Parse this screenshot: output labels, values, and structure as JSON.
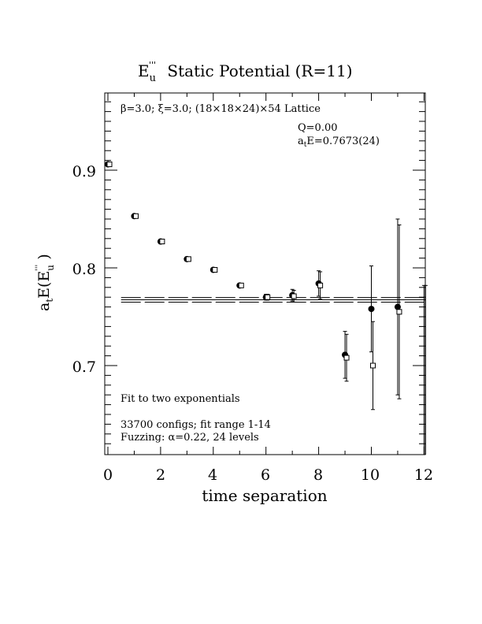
{
  "chart_data": {
    "type": "scatter",
    "title_main": "E",
    "title_sub": "u",
    "title_sup": "'''",
    "title_rest": "  Static Potential (R=11)",
    "xlabel": "time separation",
    "ylabel_a": "a",
    "ylabel_t": "t",
    "ylabel_rest": "E(E",
    "ylabel_sub": "u",
    "ylabel_sup": "'''",
    "ylabel_close": " )",
    "xlim": [
      0,
      12
    ],
    "ylim": [
      0.61,
      0.98
    ],
    "xticks": [
      "0",
      "2",
      "4",
      "6",
      "8",
      "10",
      "12"
    ],
    "yticks": [
      "0.7",
      "0.8",
      "0.9"
    ],
    "annotations": {
      "lattice": "β=3.0; ξ=3.0; (18×18×24)×54 Lattice",
      "q": "Q=0.00",
      "ate": "a",
      "ate_sub": "t",
      "ate_rest": "E=0.7673(24)",
      "fit_type": "Fit to two exponentials",
      "configs": "33700 configs; fit range 1-14",
      "fuzzing": "Fuzzing: α=0.22, 24 levels"
    },
    "fit": {
      "value": 0.7673,
      "error": 0.0024
    },
    "series": [
      {
        "marker": "filled-circle",
        "points": [
          {
            "x": 0,
            "y": 0.906,
            "err": 0.002
          },
          {
            "x": 1,
            "y": 0.853,
            "err": 0.002
          },
          {
            "x": 2,
            "y": 0.827,
            "err": 0.002
          },
          {
            "x": 3,
            "y": 0.809,
            "err": 0.002
          },
          {
            "x": 4,
            "y": 0.798,
            "err": 0.002
          },
          {
            "x": 5,
            "y": 0.782,
            "err": 0.002
          },
          {
            "x": 6,
            "y": 0.77,
            "err": 0.003
          },
          {
            "x": 7,
            "y": 0.772,
            "err": 0.006
          },
          {
            "x": 8,
            "y": 0.784,
            "err": 0.013
          },
          {
            "x": 9,
            "y": 0.711,
            "err": 0.024
          },
          {
            "x": 10,
            "y": 0.758,
            "err": 0.044
          },
          {
            "x": 11,
            "y": 0.76,
            "err": 0.09
          },
          {
            "x": 12,
            "y": 0.56,
            "err": 0.222
          }
        ]
      },
      {
        "marker": "open-square",
        "points": [
          {
            "x": 0,
            "y": 0.906,
            "err": 0.002
          },
          {
            "x": 1,
            "y": 0.853,
            "err": 0.002
          },
          {
            "x": 2,
            "y": 0.827,
            "err": 0.002
          },
          {
            "x": 3,
            "y": 0.809,
            "err": 0.002
          },
          {
            "x": 4,
            "y": 0.798,
            "err": 0.002
          },
          {
            "x": 5,
            "y": 0.782,
            "err": 0.002
          },
          {
            "x": 6,
            "y": 0.77,
            "err": 0.003
          },
          {
            "x": 7,
            "y": 0.771,
            "err": 0.006
          },
          {
            "x": 8,
            "y": 0.782,
            "err": 0.014
          },
          {
            "x": 9,
            "y": 0.708,
            "err": 0.024
          },
          {
            "x": 10,
            "y": 0.7,
            "err": 0.045
          },
          {
            "x": 11,
            "y": 0.755,
            "err": 0.089
          },
          {
            "x": 12,
            "y": 0.56,
            "err": 0.222
          }
        ]
      }
    ]
  }
}
